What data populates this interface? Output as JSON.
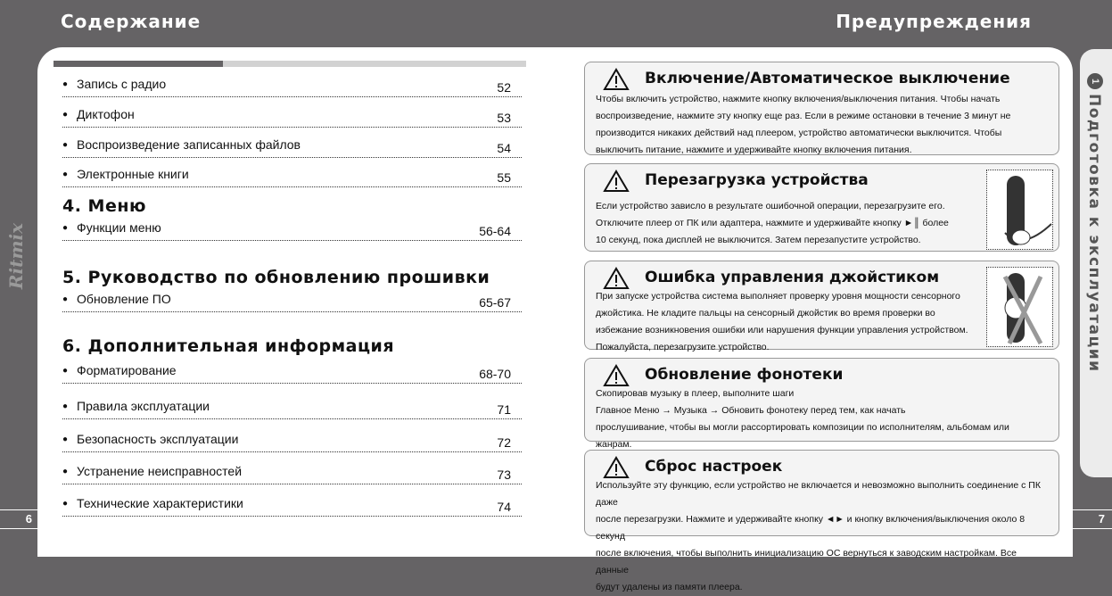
{
  "left": {
    "header": "Содержание",
    "page_number": "6",
    "logo": "Ritmix",
    "items_a": [
      {
        "t": "Запись с радио",
        "p": "52"
      },
      {
        "t": "Диктофон",
        "p": "53"
      },
      {
        "t": "Воспроизведение записанных файлов",
        "p": "54"
      },
      {
        "t": "Электронные книги",
        "p": "55"
      }
    ],
    "sec4": "4. Меню",
    "items4": [
      {
        "t": "Функции меню",
        "p": "56-64"
      }
    ],
    "sec5": "5. Руководство по обновлению прошивки",
    "items5": [
      {
        "t": "Обновление ПО",
        "p": "65-67"
      }
    ],
    "sec6": "6. Дополнительная информация",
    "items6": [
      {
        "t": "Форматирование",
        "p": "68-70"
      },
      {
        "t": "Правила эксплуатации",
        "p": "71"
      },
      {
        "t": "Безопасность эксплуатации",
        "p": "72"
      },
      {
        "t": "Устранение неисправностей",
        "p": "73"
      },
      {
        "t": "Технические характеристики",
        "p": "74"
      }
    ]
  },
  "right": {
    "header": "Предупреждения",
    "page_number": "7",
    "tab_number": "1",
    "tab_label": "Подготовка к эксплуатации",
    "boxes": [
      {
        "title": "Включение/Автоматическое выключение",
        "text": "Чтобы включить устройство, нажмите кнопку включения/выключения питания. Чтобы начать\nвоспроизведение, нажмите эту кнопку еще раз. Если в режиме остановки в течение 3 минут не\nпроизводится никаких действий над плеером, устройство автоматически выключится. Чтобы\nвыключить питание, нажмите и удерживайте кнопку включения питания."
      },
      {
        "title": "Перезагрузка устройства",
        "text": "Если устройство зависло в результате ошибочной операции, перезагрузите его.\nОтключите плеер от ПК или адаптера, нажмите и удерживайте кнопку ►║  более\n10 секунд, пока дисплей не выключится. Затем перезапустите устройство."
      },
      {
        "title": "Ошибка управления джойстиком",
        "text": "При запуске устройства система выполняет проверку уровня мощности сенсорного\nджойстика. Не кладите пальцы на сенсорный джойстик во время проверки во\nизбежание возникновения ошибки или нарушения функции управления устройством.\nПожалуйста, перезагрузите устройство."
      },
      {
        "title": "Обновление фонотеки",
        "text": "Скопировав музыку в плеер, выполните шаги\nГлавное Меню → Музыка → Обновить фонотеку перед тем, как начать\nпрослушивание, чтобы вы могли рассортировать композиции по исполнителям, альбомам или жанрам."
      },
      {
        "title": "Сброс настроек",
        "text": "Используйте эту функцию, если устройство не включается и невозможно выполнить соединение с ПК даже\nпосле перезагрузки. Нажмите и удерживайте кнопку ◄► и кнопку включения/выключения около 8 секунд\nпосле включения, чтобы выполнить инициализацию ОС вернуться к заводским настройкам. Все данные\nбудут удалены из памяти плеера."
      }
    ]
  }
}
